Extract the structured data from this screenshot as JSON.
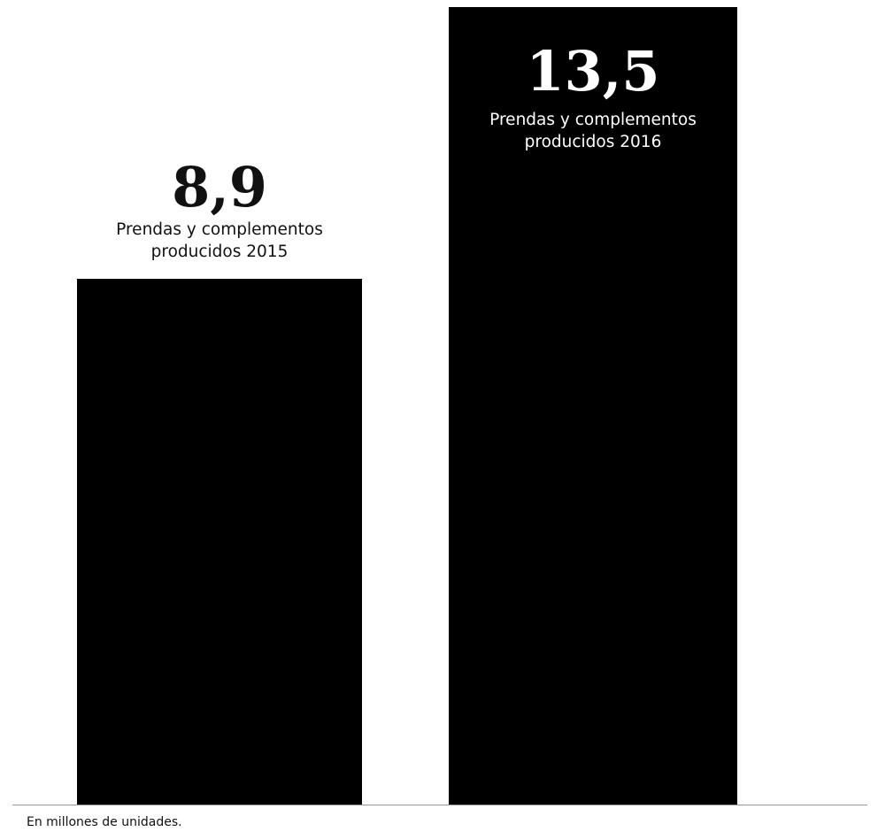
{
  "chart_data": {
    "type": "bar",
    "categories": [
      [
        "Prendas y complementos",
        "producidos 2015"
      ],
      [
        "Prendas y complementos",
        "producidos 2016"
      ]
    ],
    "values": [
      8.9,
      13.5
    ],
    "value_labels": [
      "8,9",
      "13,5"
    ],
    "ylim": [
      0,
      13.5
    ],
    "grid": false,
    "colors": {
      "bar": "#000000",
      "text_outside": "#111111",
      "text_inside": "#ffffff",
      "baseline": "#999999"
    }
  },
  "footnote": "En millones de unidades."
}
